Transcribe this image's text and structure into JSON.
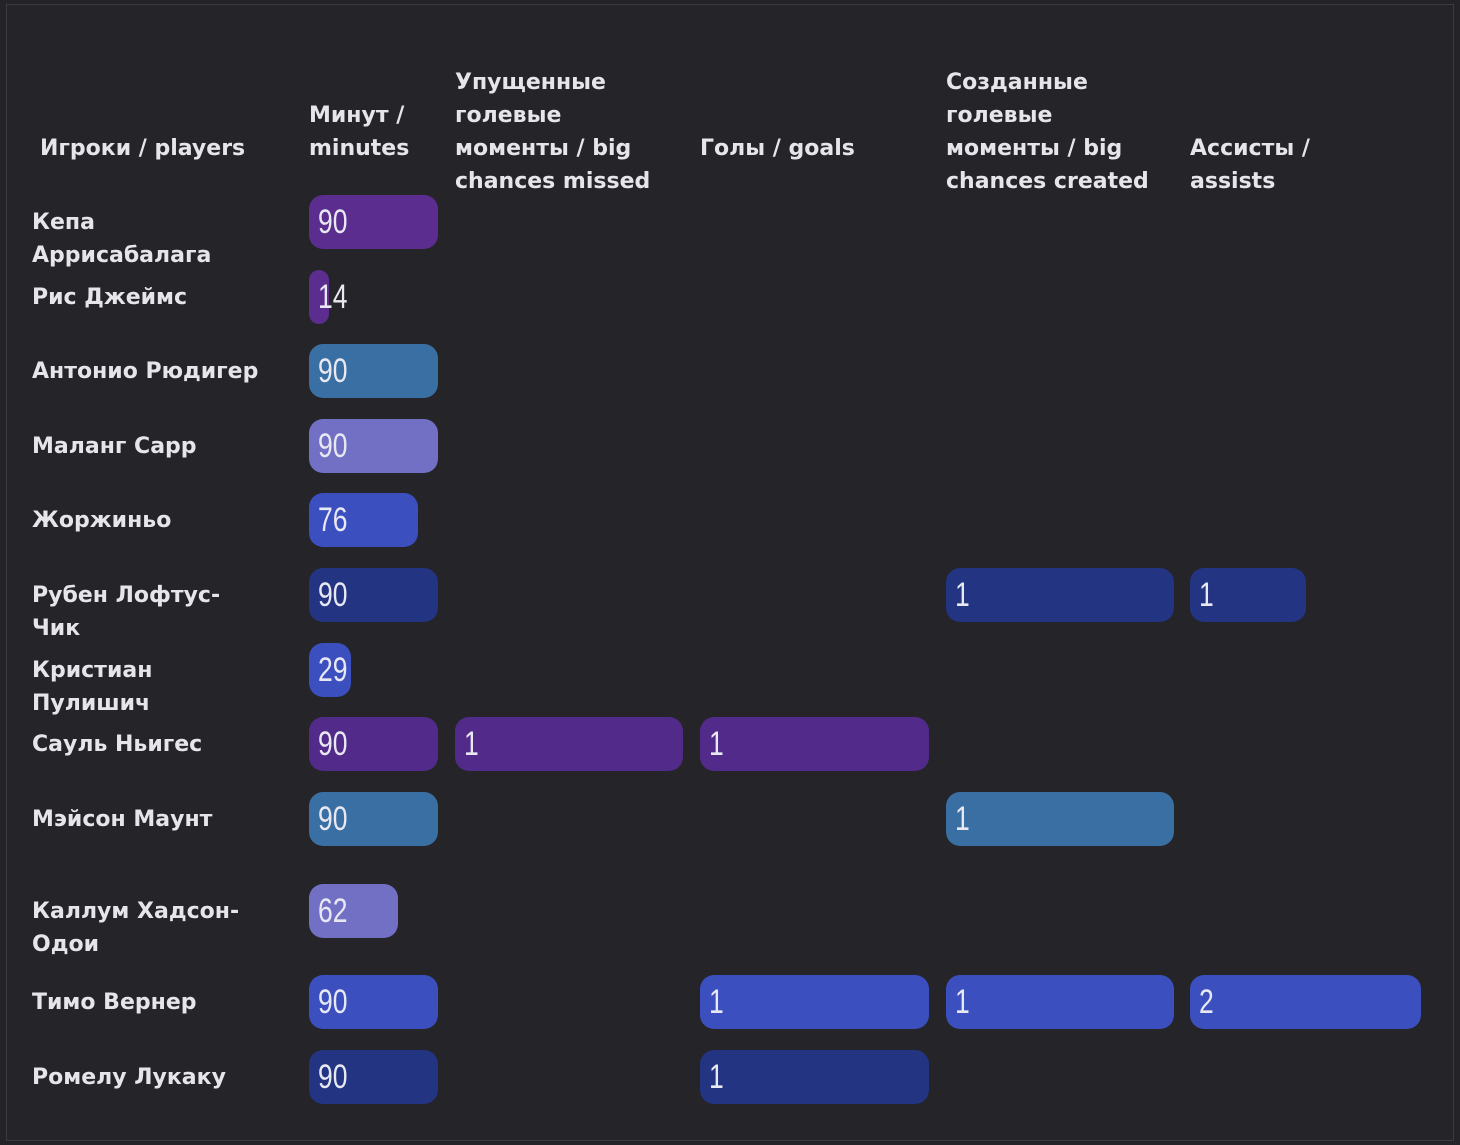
{
  "chart_data": {
    "type": "table",
    "columns": [
      {
        "key": "minutes",
        "label": "Минут / minutes",
        "max": 90
      },
      {
        "key": "big_chances_missed",
        "label": "Упущенные голевые моменты / big chances missed",
        "max": 1
      },
      {
        "key": "goals",
        "label": "Голы / goals",
        "max": 1
      },
      {
        "key": "big_chances_created",
        "label": "Созданные голевые моменты / big chances created",
        "max": 1
      },
      {
        "key": "assists",
        "label": "Ассисты / assists",
        "max": 2
      }
    ],
    "player_header": "Игроки / players",
    "rows": [
      {
        "player": "Кепа Аррисабалага",
        "color": "#5b2d8e",
        "values": {
          "minutes": "90"
        }
      },
      {
        "player": "Рис Джеймс",
        "color": "#5b2d8e",
        "values": {
          "minutes": "14"
        }
      },
      {
        "player": "Антонио Рюдигер",
        "color": "#3a6fa3",
        "values": {
          "minutes": "90"
        }
      },
      {
        "player": "Маланг Сарр",
        "color": "#7170c4",
        "values": {
          "minutes": "90"
        }
      },
      {
        "player": "Жоржиньо",
        "color": "#3c4fbf",
        "values": {
          "minutes": "76"
        }
      },
      {
        "player": "Рубен Лофтус-Чик",
        "color": "#233482",
        "values": {
          "minutes": "90",
          "big_chances_created": "1",
          "assists": "1"
        }
      },
      {
        "player": "Кристиан Пулишич",
        "color": "#3c4fbf",
        "values": {
          "minutes": "29"
        }
      },
      {
        "player": "Сауль Ньигес",
        "color": "#522a8a",
        "values": {
          "minutes": "90",
          "big_chances_missed": "1",
          "goals": "1"
        }
      },
      {
        "player": "Мэйсон Маунт",
        "color": "#3a6fa3",
        "values": {
          "minutes": "90",
          "big_chances_created": "1"
        }
      },
      {
        "player": "Каллум Хадсон-Одои",
        "color": "#7170c4",
        "values": {
          "minutes": "62"
        }
      },
      {
        "player": "Тимо Вернер",
        "color": "#3c4fbf",
        "values": {
          "minutes": "90",
          "goals": "1",
          "big_chances_created": "1",
          "assists": "2"
        }
      },
      {
        "player": "Ромелу Лукаку",
        "color": "#233482",
        "values": {
          "minutes": "90",
          "goals": "1"
        }
      }
    ]
  }
}
